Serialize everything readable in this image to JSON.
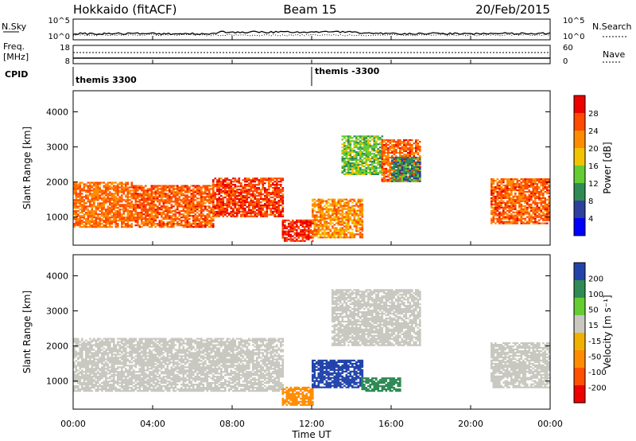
{
  "header": {
    "station": "Hokkaido (fitACF)",
    "beam": "Beam 15",
    "date": "20/Feb/2015"
  },
  "strips": {
    "nsky_label": "N.Sky",
    "nsky_ticks": [
      "10^5",
      "10^0"
    ],
    "nsearch_label": "N.Search",
    "nsearch_ticks": [
      "10^5",
      "10^0"
    ],
    "freq_label_1": "Freq.",
    "freq_label_2": "[MHz]",
    "freq_ticks": [
      "18",
      "8"
    ],
    "nave_label": "Nave",
    "nave_ticks": [
      "60",
      "0"
    ],
    "cpid_label": "CPID",
    "cpid_entries": [
      {
        "text": "themis 3300",
        "start": "00:00"
      },
      {
        "text": "themis -3300",
        "start": "12:00"
      }
    ]
  },
  "colors": {
    "power_scale": [
      "#0000ff",
      "#2e3f9e",
      "#2f8a55",
      "#66cc33",
      "#f2c300",
      "#ff8c00",
      "#ff4a00",
      "#ee0000"
    ],
    "velocity_scale": [
      "#ee0000",
      "#ff5000",
      "#ff8c00",
      "#f0b000",
      "#c8c8c0",
      "#66cc33",
      "#2f8a55",
      "#2244aa"
    ]
  },
  "chart_data": [
    {
      "type": "heatmap",
      "panel": "power",
      "xlabel": "",
      "ylabel": "Slant Range [km]",
      "xlim": [
        "00:00",
        "24:00"
      ],
      "ylim": [
        200,
        4600
      ],
      "yticks": [
        "1000",
        "2000",
        "3000",
        "4000"
      ],
      "colorbar": {
        "title": "Power [dB]",
        "ticks": [
          "4",
          "8",
          "12",
          "16",
          "20",
          "24",
          "28"
        ],
        "range": [
          0,
          32
        ]
      },
      "regions": [
        {
          "t": [
            0.0,
            3.0
          ],
          "r": [
            700,
            2000
          ],
          "level": 24
        },
        {
          "t": [
            3.0,
            7.0
          ],
          "r": [
            700,
            1900
          ],
          "level": 25
        },
        {
          "t": [
            7.0,
            10.5
          ],
          "r": [
            1000,
            2100
          ],
          "level": 27
        },
        {
          "t": [
            10.5,
            12.0
          ],
          "r": [
            300,
            900
          ],
          "level": 28
        },
        {
          "t": [
            12.0,
            14.5
          ],
          "r": [
            400,
            1500
          ],
          "level": 22
        },
        {
          "t": [
            13.5,
            15.5
          ],
          "r": [
            2200,
            3300
          ],
          "level": 14
        },
        {
          "t": [
            15.5,
            17.5
          ],
          "r": [
            2000,
            3200
          ],
          "level": 25
        },
        {
          "t": [
            16.0,
            17.5
          ],
          "r": [
            2000,
            2700
          ],
          "level": 10
        },
        {
          "t": [
            21.0,
            24.0
          ],
          "r": [
            800,
            2100
          ],
          "level": 25
        }
      ]
    },
    {
      "type": "heatmap",
      "panel": "velocity",
      "xlabel": "Time UT",
      "ylabel": "Slant Range [km]",
      "xlim": [
        "00:00",
        "24:00"
      ],
      "ylim": [
        200,
        4600
      ],
      "xticks": [
        "00:00",
        "04:00",
        "08:00",
        "12:00",
        "16:00",
        "20:00",
        "00:00"
      ],
      "yticks": [
        "1000",
        "2000",
        "3000",
        "4000"
      ],
      "colorbar": {
        "title": "Velocity [m s⁻¹]",
        "ticks": [
          "200",
          "100",
          "50",
          "15",
          "-15",
          "-50",
          "-100",
          "-200"
        ]
      },
      "regions": [
        {
          "t": [
            0.0,
            10.5
          ],
          "r": [
            700,
            2200
          ],
          "level": 0
        },
        {
          "t": [
            10.5,
            12.0
          ],
          "r": [
            300,
            800
          ],
          "level": -60
        },
        {
          "t": [
            12.0,
            14.5
          ],
          "r": [
            800,
            1600
          ],
          "level": 120
        },
        {
          "t": [
            14.5,
            16.5
          ],
          "r": [
            700,
            1100
          ],
          "level": 60
        },
        {
          "t": [
            13.0,
            17.5
          ],
          "r": [
            2000,
            3600
          ],
          "level": 0
        },
        {
          "t": [
            21.0,
            24.0
          ],
          "r": [
            800,
            2100
          ],
          "level": 0
        }
      ]
    }
  ]
}
